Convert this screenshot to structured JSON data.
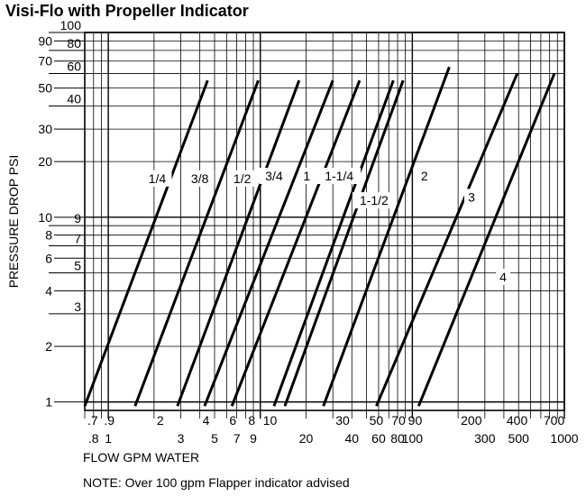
{
  "chart_data": {
    "type": "line",
    "title": "Visi-Flo with Propeller Indicator",
    "xlabel": "FLOW GPM WATER",
    "ylabel": "PRESSURE DROP PSI",
    "note": "NOTE: Over 100 gpm Flapper indicator advised",
    "x_scale": "log",
    "y_scale": "log",
    "xlim": [
      0.7,
      1000
    ],
    "ylim": [
      0.9,
      100
    ],
    "grid": true,
    "x_tick_labels_upper": [
      ".7",
      ".9",
      "2",
      "4",
      "6",
      "8",
      "10",
      "30",
      "50",
      "70",
      "90",
      "200",
      "400",
      "700"
    ],
    "x_tick_labels_upper_values": [
      0.7,
      0.9,
      2,
      4,
      6,
      8,
      10,
      30,
      50,
      70,
      90,
      200,
      400,
      700
    ],
    "x_tick_labels_lower": [
      ".8",
      "1",
      "3",
      "5",
      "7",
      "9",
      "20",
      "40",
      "60",
      "80",
      "100",
      "300",
      "500",
      "1000"
    ],
    "x_tick_labels_lower_values": [
      0.8,
      1,
      3,
      5,
      7,
      9,
      20,
      40,
      60,
      80,
      100,
      300,
      500,
      1000
    ],
    "y_tick_labels_left": [
      "90",
      "70",
      "50",
      "30",
      "20",
      "10",
      "8",
      "6",
      "4",
      "2",
      "1"
    ],
    "y_tick_labels_left_values": [
      90,
      70,
      50,
      30,
      20,
      10,
      8,
      6,
      4,
      2,
      1
    ],
    "y_tick_labels_right": [
      "100",
      "80",
      "60",
      "40",
      "9",
      "7",
      "5",
      "3"
    ],
    "y_tick_labels_right_values": [
      100,
      80,
      60,
      40,
      9,
      7,
      5,
      3
    ],
    "series": [
      {
        "name": "1/4",
        "x": [
          0.7,
          4.5
        ],
        "y": [
          0.95,
          55
        ]
      },
      {
        "name": "3/8",
        "x": [
          1.5,
          9.7
        ],
        "y": [
          0.95,
          55
        ]
      },
      {
        "name": "1/2",
        "x": [
          2.85,
          18
        ],
        "y": [
          0.95,
          55
        ]
      },
      {
        "name": "3/4",
        "x": [
          4.3,
          30
        ],
        "y": [
          0.95,
          55
        ]
      },
      {
        "name": "1",
        "x": [
          6.5,
          45
        ],
        "y": [
          0.95,
          55
        ]
      },
      {
        "name": "1-1/4",
        "x": [
          12.3,
          75
        ],
        "y": [
          0.95,
          55
        ]
      },
      {
        "name": "1-1/2",
        "x": [
          14.5,
          87
        ],
        "y": [
          0.95,
          55
        ]
      },
      {
        "name": "2",
        "x": [
          26,
          175
        ],
        "y": [
          0.95,
          65
        ]
      },
      {
        "name": "3",
        "x": [
          58,
          490
        ],
        "y": [
          0.95,
          60
        ]
      },
      {
        "name": "4",
        "x": [
          110,
          860
        ],
        "y": [
          0.95,
          60
        ]
      }
    ],
    "series_labels": [
      "1/4",
      "3/8",
      "1/2",
      "3/4",
      "1",
      "1-1/4",
      "1-1/2",
      "2",
      "3",
      "4"
    ],
    "series_label_pos": [
      {
        "x": 2.1,
        "y": 15.5
      },
      {
        "x": 4.0,
        "y": 15.5
      },
      {
        "x": 7.6,
        "y": 15.5
      },
      {
        "x": 12.3,
        "y": 16.0
      },
      {
        "x": 20.2,
        "y": 16.0
      },
      {
        "x": 33,
        "y": 16.0
      },
      {
        "x": 56,
        "y": 11.8
      },
      {
        "x": 120,
        "y": 16.0
      },
      {
        "x": 245,
        "y": 12.3
      },
      {
        "x": 395,
        "y": 4.55
      }
    ],
    "line_color": "#000000"
  }
}
